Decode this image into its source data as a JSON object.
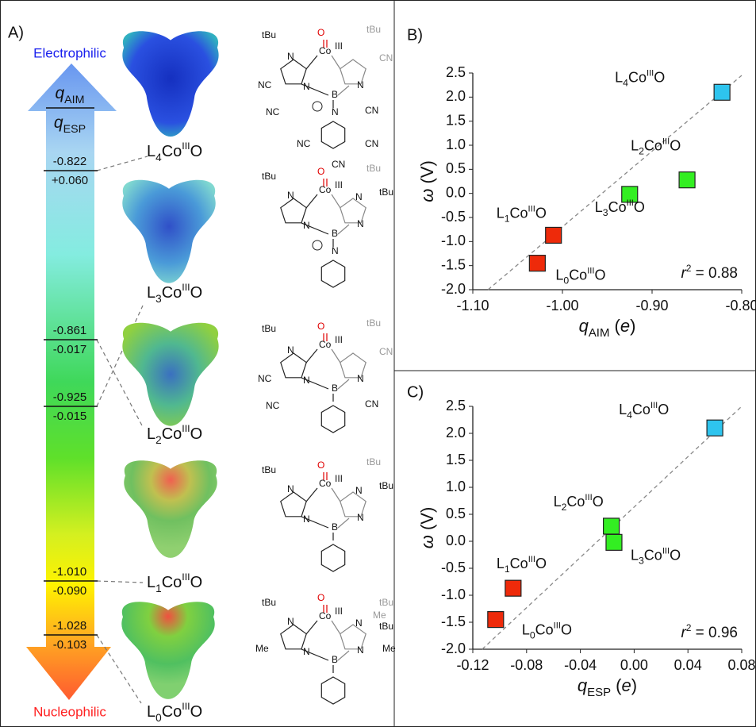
{
  "panel_a": {
    "label": "A)",
    "top_label": "Electrophilic",
    "bottom_label": "Nucleophilic",
    "header": [
      [
        {
          "text": "q",
          "style": "italic"
        },
        {
          "text": "AIM",
          "pos": "sub"
        }
      ],
      [
        {
          "text": "q",
          "style": "italic"
        },
        {
          "text": "ESP",
          "pos": "sub"
        }
      ]
    ],
    "scale": [
      [
        "-0.822",
        "+0.060"
      ],
      [
        "-0.861",
        "-0.017"
      ],
      [
        "-0.925",
        "-0.015"
      ],
      [
        "-1.010",
        "-0.090"
      ],
      [
        "-1.028",
        "-0.103"
      ]
    ],
    "complexes": [
      {
        "label": [
          {
            "text": "L"
          },
          {
            "text": "4",
            "pos": "sub"
          },
          {
            "text": "Co"
          },
          {
            "text": "III",
            "pos": "sup"
          },
          {
            "text": "O"
          }
        ],
        "structure": [
          "tBu",
          {
            "text": "O",
            "color": "#e00000"
          },
          "Co",
          "III",
          {
            "text": "tBu",
            "color": "#999999"
          },
          "N",
          "NC",
          "N",
          "B",
          "N",
          {
            "text": "CN",
            "color": "#999999"
          },
          "NC",
          "CN",
          "N",
          "NC",
          "CN",
          "CN"
        ]
      },
      {
        "label": [
          {
            "text": "L"
          },
          {
            "text": "3",
            "pos": "sub"
          },
          {
            "text": "Co"
          },
          {
            "text": "III",
            "pos": "sup"
          },
          {
            "text": "O"
          }
        ],
        "structure": [
          "tBu",
          {
            "text": "O",
            "color": "#e00000"
          },
          "Co",
          "III",
          {
            "text": "tBu",
            "color": "#999999"
          },
          "N",
          "N",
          "B",
          "N",
          "N",
          "tBu",
          "N"
        ]
      },
      {
        "label": [
          {
            "text": "L"
          },
          {
            "text": "2",
            "pos": "sub"
          },
          {
            "text": "Co"
          },
          {
            "text": "III",
            "pos": "sup"
          },
          {
            "text": "O"
          }
        ],
        "structure": [
          "tBu",
          {
            "text": "O",
            "color": "#e00000"
          },
          "Co",
          "III",
          {
            "text": "tBu",
            "color": "#999999"
          },
          "N",
          "NC",
          "N",
          "B",
          "N",
          {
            "text": "CN",
            "color": "#999999"
          },
          "NC",
          "CN"
        ]
      },
      {
        "label": [
          {
            "text": "L"
          },
          {
            "text": "1",
            "pos": "sub"
          },
          {
            "text": "Co"
          },
          {
            "text": "III",
            "pos": "sup"
          },
          {
            "text": "O"
          }
        ],
        "structure": [
          "tBu",
          {
            "text": "O",
            "color": "#e00000"
          },
          "Co",
          "III",
          {
            "text": "tBu",
            "color": "#999999"
          },
          "N",
          "N",
          "B",
          "N",
          "N",
          "tBu"
        ]
      },
      {
        "label": [
          {
            "text": "L"
          },
          {
            "text": "0",
            "pos": "sub"
          },
          {
            "text": "Co"
          },
          {
            "text": "III",
            "pos": "sup"
          },
          {
            "text": "O"
          }
        ],
        "structure": [
          "tBu",
          {
            "text": "O",
            "color": "#e00000"
          },
          "Co",
          "III",
          {
            "text": "tBu",
            "color": "#999999"
          },
          {
            "text": "Me",
            "color": "#999999"
          },
          "Me",
          "N",
          "N",
          "B",
          "N",
          "N",
          "tBu",
          "Me"
        ]
      }
    ]
  },
  "chart_data": [
    {
      "type": "scatter",
      "label": "B)",
      "x_label": [
        {
          "text": "q",
          "style": "italic"
        },
        {
          "text": "AIM",
          "pos": "sub"
        },
        {
          "text": " ("
        },
        {
          "text": "e",
          "style": "italic"
        },
        {
          "text": ")"
        }
      ],
      "y_label": [
        {
          "text": "ω",
          "style": "italic"
        },
        {
          "text": " (V)"
        }
      ],
      "xlim": [
        -1.1,
        -0.8
      ],
      "xticks": [
        {
          "value": -1.1,
          "label": "-1.10"
        },
        {
          "value": -1.0,
          "label": "-1.00"
        },
        {
          "value": -0.9,
          "label": "-0.90"
        },
        {
          "value": -0.8,
          "label": "-0.80"
        }
      ],
      "ylim": [
        -2.0,
        2.5
      ],
      "yticks": [
        {
          "value": -2,
          "label": "-2.0"
        },
        -1.5,
        {
          "value": -1,
          "label": "-1.0"
        },
        -0.5,
        {
          "value": 0,
          "label": "0.0"
        },
        0.5,
        {
          "value": 1,
          "label": "1.0"
        },
        1.5,
        {
          "value": 2,
          "label": "2.0"
        },
        2.5
      ],
      "marker": "square",
      "fit_line": {
        "x": [
          -1.083,
          -0.8
        ],
        "y": [
          -2.0,
          2.45
        ]
      },
      "annotation": [
        {
          "text": "r",
          "style": "italic"
        },
        {
          "text": "2",
          "pos": "sup"
        },
        {
          "text": " = 0.88"
        }
      ],
      "series": [
        {
          "label": [
            {
              "text": "L"
            },
            {
              "text": "4",
              "pos": "sub"
            },
            {
              "text": "Co"
            },
            {
              "text": "III",
              "pos": "sup"
            },
            {
              "text": "O"
            }
          ],
          "color": "#2ec4ee",
          "x": [
            -0.822
          ],
          "values": [
            2.1
          ]
        },
        {
          "label": [
            {
              "text": "L"
            },
            {
              "text": "2",
              "pos": "sub"
            },
            {
              "text": "Co"
            },
            {
              "text": "III",
              "pos": "sup"
            },
            {
              "text": "O"
            }
          ],
          "color": "#33ee22",
          "x": [
            -0.861
          ],
          "values": [
            0.28
          ]
        },
        {
          "label": [
            {
              "text": "L"
            },
            {
              "text": "3",
              "pos": "sub"
            },
            {
              "text": "Co"
            },
            {
              "text": "III",
              "pos": "sup"
            },
            {
              "text": "O"
            }
          ],
          "color": "#33ee22",
          "x": [
            -0.925
          ],
          "values": [
            -0.02
          ]
        },
        {
          "label": [
            {
              "text": "L"
            },
            {
              "text": "1",
              "pos": "sub"
            },
            {
              "text": "Co"
            },
            {
              "text": "III",
              "pos": "sup"
            },
            {
              "text": "O"
            }
          ],
          "color": "#ee2a0a",
          "x": [
            -1.01
          ],
          "values": [
            -0.87
          ]
        },
        {
          "label": [
            {
              "text": "L"
            },
            {
              "text": "0",
              "pos": "sub"
            },
            {
              "text": "Co"
            },
            {
              "text": "III",
              "pos": "sup"
            },
            {
              "text": "O"
            }
          ],
          "color": "#ee2a0a",
          "x": [
            -1.028
          ],
          "values": [
            -1.45
          ]
        }
      ]
    },
    {
      "type": "scatter",
      "label": "C)",
      "x_label": [
        {
          "text": "q",
          "style": "italic"
        },
        {
          "text": "ESP",
          "pos": "sub"
        },
        {
          "text": " ("
        },
        {
          "text": "e",
          "style": "italic"
        },
        {
          "text": ")"
        }
      ],
      "y_label": [
        {
          "text": "ω",
          "style": "italic"
        },
        {
          "text": " (V)"
        }
      ],
      "xlim": [
        -0.12,
        0.08
      ],
      "xticks": [
        -0.12,
        -0.08,
        -0.04,
        {
          "value": 0,
          "label": "0.00"
        },
        0.04,
        0.08
      ],
      "ylim": [
        -2.0,
        2.5
      ],
      "yticks": [
        {
          "value": -2,
          "label": "-2.0"
        },
        -1.5,
        {
          "value": -1,
          "label": "-1.0"
        },
        -0.5,
        {
          "value": 0,
          "label": "0.0"
        },
        0.5,
        {
          "value": 1,
          "label": "1.0"
        },
        1.5,
        {
          "value": 2,
          "label": "2.0"
        },
        2.5
      ],
      "marker": "square",
      "fit_line": {
        "x": [
          -0.113,
          0.08
        ],
        "y": [
          -2.0,
          2.5
        ]
      },
      "annotation": [
        {
          "text": "r",
          "style": "italic"
        },
        {
          "text": "2",
          "pos": "sup"
        },
        {
          "text": " = 0.96"
        }
      ],
      "series": [
        {
          "label": [
            {
              "text": "L"
            },
            {
              "text": "4",
              "pos": "sub"
            },
            {
              "text": "Co"
            },
            {
              "text": "III",
              "pos": "sup"
            },
            {
              "text": "O"
            }
          ],
          "color": "#2ec4ee",
          "x": [
            0.06
          ],
          "values": [
            2.1
          ]
        },
        {
          "label": [
            {
              "text": "L"
            },
            {
              "text": "2",
              "pos": "sub"
            },
            {
              "text": "Co"
            },
            {
              "text": "III",
              "pos": "sup"
            },
            {
              "text": "O"
            }
          ],
          "color": "#33ee22",
          "x": [
            -0.017
          ],
          "values": [
            0.28
          ]
        },
        {
          "label": [
            {
              "text": "L"
            },
            {
              "text": "3",
              "pos": "sub"
            },
            {
              "text": "Co"
            },
            {
              "text": "III",
              "pos": "sup"
            },
            {
              "text": "O"
            }
          ],
          "color": "#33ee22",
          "x": [
            -0.015
          ],
          "values": [
            -0.02
          ]
        },
        {
          "label": [
            {
              "text": "L"
            },
            {
              "text": "1",
              "pos": "sub"
            },
            {
              "text": "Co"
            },
            {
              "text": "III",
              "pos": "sup"
            },
            {
              "text": "O"
            }
          ],
          "color": "#ee2a0a",
          "x": [
            -0.09
          ],
          "values": [
            -0.87
          ]
        },
        {
          "label": [
            {
              "text": "L"
            },
            {
              "text": "0",
              "pos": "sub"
            },
            {
              "text": "Co"
            },
            {
              "text": "III",
              "pos": "sup"
            },
            {
              "text": "O"
            }
          ],
          "color": "#ee2a0a",
          "x": [
            -0.103
          ],
          "values": [
            -1.45
          ]
        }
      ]
    }
  ]
}
